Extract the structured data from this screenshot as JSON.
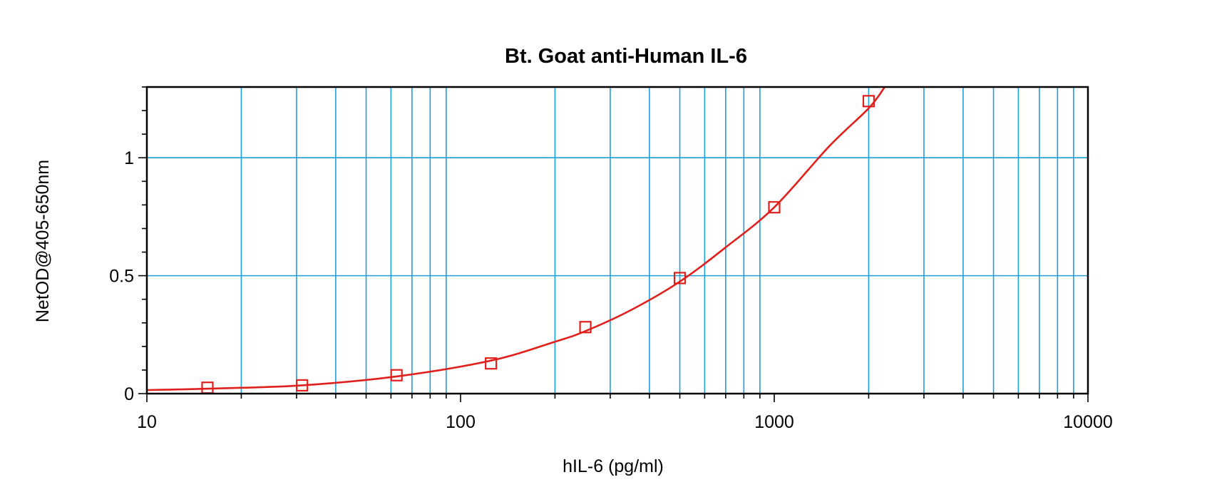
{
  "chart_data": {
    "type": "scatter",
    "title": "Bt. Goat anti-Human IL-6",
    "xlabel": "hIL-6 (pg/ml)",
    "ylabel": "NetOD@405-650nm",
    "x_scale": "log",
    "xlim": [
      10,
      10000
    ],
    "ylim": [
      0,
      1.3
    ],
    "x_ticks": [
      10,
      100,
      1000,
      10000
    ],
    "x_tick_labels": [
      "10",
      "100",
      "1000",
      "10000"
    ],
    "y_ticks": [
      0,
      0.5,
      1
    ],
    "y_tick_labels": [
      "0",
      "0.5",
      "1"
    ],
    "grid": true,
    "series": [
      {
        "x": [
          15.6,
          31.25,
          62.5,
          125,
          250,
          500,
          1000,
          2000
        ],
        "y": [
          0.025,
          0.035,
          0.078,
          0.128,
          0.282,
          0.49,
          0.79,
          1.24
        ]
      }
    ],
    "fit_curve": {
      "type": "line",
      "x": [
        10,
        15.6,
        31.25,
        62.5,
        125,
        200,
        250,
        350,
        500,
        700,
        1000,
        1500,
        2000,
        2250
      ],
      "y": [
        0.015,
        0.021,
        0.035,
        0.073,
        0.14,
        0.22,
        0.265,
        0.355,
        0.475,
        0.62,
        0.79,
        1.05,
        1.21,
        1.3
      ]
    },
    "colors": {
      "series": "#e0201c",
      "grid": "#1e9fdc",
      "frame": "#000000"
    }
  }
}
